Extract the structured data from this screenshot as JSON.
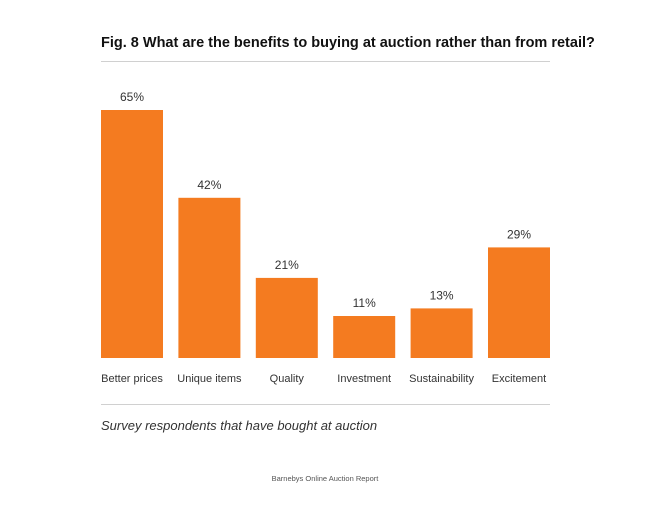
{
  "chart_data": {
    "type": "bar",
    "title": "Fig. 8 What are the benefits to buying at auction rather than from retail?",
    "categories": [
      "Better prices",
      "Unique items",
      "Quality",
      "Investment",
      "Sustainability",
      "Excitement"
    ],
    "values": [
      65,
      42,
      21,
      11,
      13,
      29
    ],
    "value_labels": [
      "65%",
      "42%",
      "21%",
      "11%",
      "13%",
      "29%"
    ],
    "ylim": [
      0,
      65
    ],
    "grid": false,
    "legend": "none",
    "bar_color": "#f47b20",
    "subtitle": "Survey respondents that have bought at auction"
  },
  "footer": {
    "source": "Barnebys Online Auction Report"
  }
}
